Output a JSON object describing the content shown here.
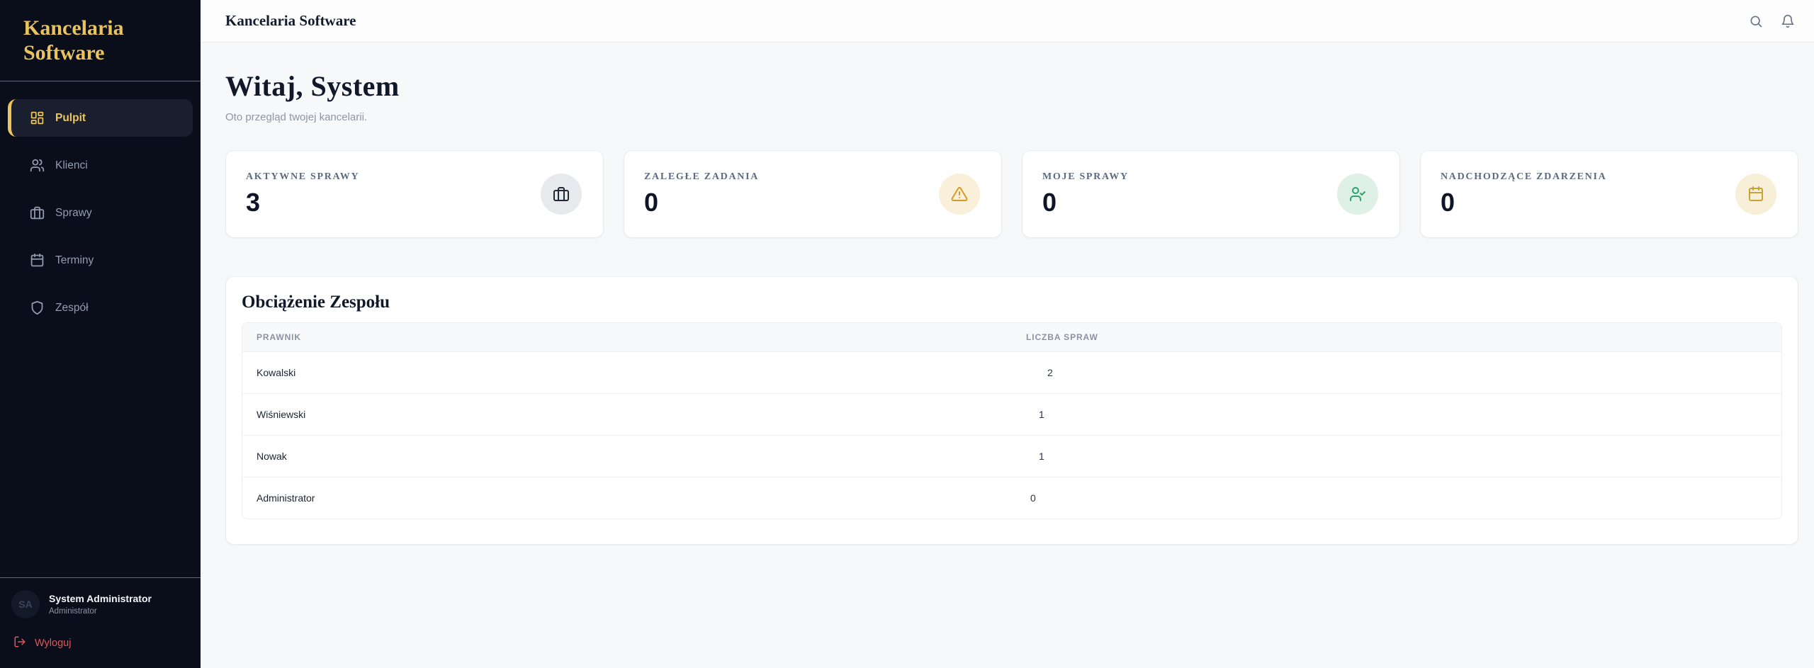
{
  "sidebar": {
    "logo": "Kancelaria Software",
    "items": [
      {
        "label": "Pulpit",
        "icon": "dashboard-grid-icon",
        "active": true
      },
      {
        "label": "Klienci",
        "icon": "users-icon",
        "active": false
      },
      {
        "label": "Sprawy",
        "icon": "briefcase-icon",
        "active": false
      },
      {
        "label": "Terminy",
        "icon": "calendar-icon",
        "active": false
      },
      {
        "label": "Zespół",
        "icon": "shield-icon",
        "active": false
      }
    ],
    "user": {
      "initials": "SA",
      "name": "System Administrator",
      "role": "Administrator"
    },
    "logout_label": "Wyloguj"
  },
  "header": {
    "title": "Kancelaria Software",
    "icons": [
      "search-icon",
      "bell-icon"
    ]
  },
  "main": {
    "greeting": "Witaj, System",
    "subtitle": "Oto przegląd twojej kancelarii."
  },
  "stats": {
    "cards": [
      {
        "label": "AKTYWNE SPRAWY",
        "value": "3",
        "icon": "briefcase-icon",
        "icon_color": "#1f2937",
        "icon_bg": "#e8e9ec"
      },
      {
        "label": "ZALEGŁE ZADANIA",
        "value": "0",
        "icon": "alert-triangle-icon",
        "icon_color": "#d79a26",
        "icon_bg": "#faf0da"
      },
      {
        "label": "MOJE SPRAWY",
        "value": "0",
        "icon": "user-check-icon",
        "icon_color": "#2aa56a",
        "icon_bg": "#dff0e6"
      },
      {
        "label": "NADCHODZĄCE ZDARZENIA",
        "value": "0",
        "icon": "calendar-icon",
        "icon_color": "#c8a235",
        "icon_bg": "#f8efd8"
      }
    ]
  },
  "team_table": {
    "title": "Obciążenie Zespołu",
    "columns": [
      "Prawnik",
      "Liczba Spraw"
    ],
    "rows": [
      {
        "name": "Kowalski",
        "count": 2
      },
      {
        "name": "Wiśniewski",
        "count": 1
      },
      {
        "name": "Nowak",
        "count": 1
      },
      {
        "name": "Administrator",
        "count": 0
      }
    ]
  },
  "colors": {
    "sidebar_bg": "#0a0e1b",
    "accent_gold": "#e9c35e",
    "logout_red": "#e25555",
    "warning_amber": "#d79a26",
    "success_green": "#2aa56a"
  }
}
